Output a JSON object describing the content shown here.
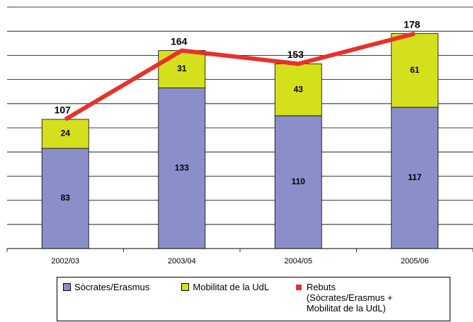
{
  "chart_data": {
    "type": "bar",
    "stacked": true,
    "categories": [
      "2002/03",
      "2003/04",
      "2004/05",
      "2005/06"
    ],
    "series": [
      {
        "name": "Sòcrates/Erasmus",
        "color": "#8b8fc9",
        "values": [
          83,
          133,
          110,
          117
        ]
      },
      {
        "name": "Mobilitat de la UdL",
        "color": "#d4e01c",
        "values": [
          24,
          31,
          43,
          61
        ]
      },
      {
        "name": "Rebuts (Sòcrates/Erasmus + Mobilitat de la UdL)",
        "color": "#e8312a",
        "type": "line",
        "values": [
          107,
          164,
          153,
          178
        ]
      }
    ],
    "ylim": [
      0,
      200
    ],
    "yticks": [
      0,
      20,
      40,
      60,
      80,
      100,
      120,
      140,
      160,
      180,
      200
    ],
    "grid": true
  }
}
